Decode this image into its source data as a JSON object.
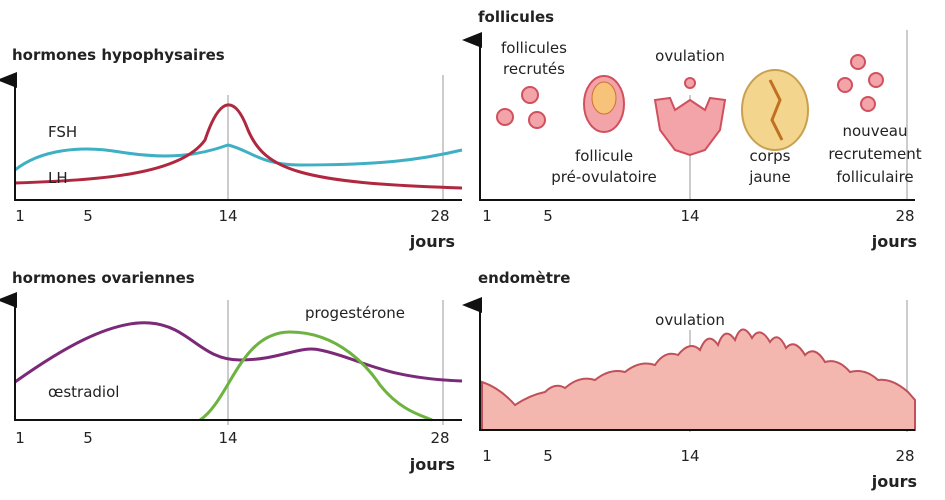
{
  "panels": [
    {
      "title": "hormones hypophysaires",
      "ticks": [
        "1",
        "5",
        "14",
        "28"
      ],
      "axis_label": "jours",
      "labels": [
        "FSH",
        "LH"
      ]
    },
    {
      "title": "follicules",
      "ticks": [
        "1",
        "5",
        "14",
        "28"
      ],
      "axis_label": "jours",
      "labels": [
        [
          "follicules",
          "recrutés"
        ],
        [
          "ovulation"
        ],
        [
          "follicule",
          "pré-ovulatoire"
        ],
        [
          "corps",
          "jaune"
        ],
        [
          "nouveau",
          "recrutement",
          "folliculaire"
        ]
      ]
    },
    {
      "title": "hormones ovariennes",
      "ticks": [
        "1",
        "5",
        "14",
        "28"
      ],
      "axis_label": "jours",
      "labels": [
        "progestérone",
        "œstradiol"
      ]
    },
    {
      "title": "endomètre",
      "ticks": [
        "1",
        "5",
        "14",
        "28"
      ],
      "axis_label": "jours",
      "labels": [
        "ovulation"
      ]
    }
  ]
}
